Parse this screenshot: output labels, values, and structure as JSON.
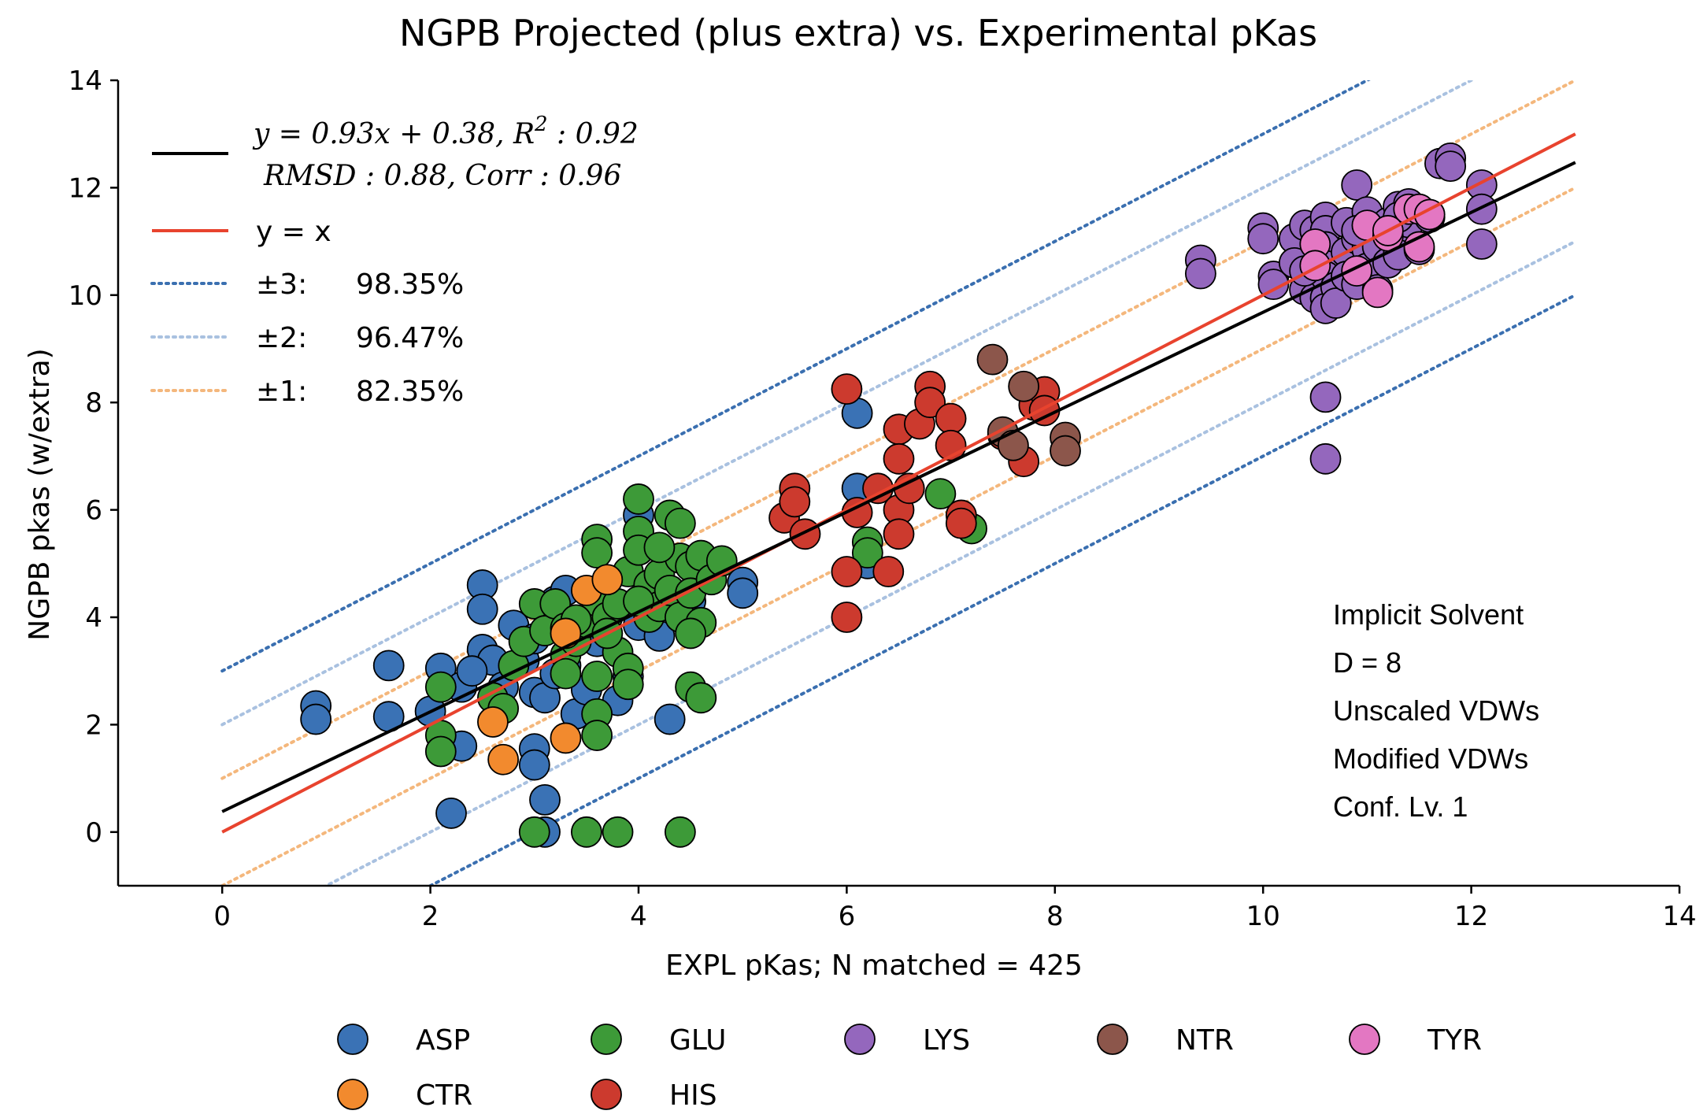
{
  "chart_data": {
    "type": "scatter",
    "title": "NGPB Projected (plus extra) vs. Experimental pKas",
    "xlabel": "EXPL pKas; N matched = 425",
    "ylabel": "NGPB pkas (w/extra)",
    "xlim": [
      -1,
      14
    ],
    "ylim": [
      -1,
      14
    ],
    "xticks": [
      "0",
      "2",
      "4",
      "6",
      "8",
      "10",
      "12",
      "14"
    ],
    "yticks": [
      "0",
      "2",
      "4",
      "6",
      "8",
      "10",
      "12",
      "14"
    ],
    "fit": {
      "slope": 0.93,
      "intercept": 0.38,
      "x_range": [
        0,
        13
      ],
      "color": "#000000"
    },
    "identity": {
      "label": "y = x",
      "x_range": [
        0,
        13
      ],
      "color": "#e8432e"
    },
    "bands": [
      {
        "offset": 3,
        "label": "±3:",
        "percent": "98.35%",
        "color": "#3a6fb0"
      },
      {
        "offset": 2,
        "label": "±2:",
        "percent": "96.47%",
        "color": "#a9c1e0"
      },
      {
        "offset": 1,
        "label": "±1:",
        "percent": "82.35%",
        "color": "#f4b77c"
      }
    ],
    "legend_top": {
      "fit_line1": "y = 0.93x + 0.38, R",
      "fit_line1_sup": "2",
      "fit_line1_tail": " : 0.92",
      "fit_line2": "RMSD : 0.88, Corr : 0.96"
    },
    "annotation": [
      "Implicit Solvent",
      "D = 8",
      "Unscaled VDWs",
      "Modified VDWs",
      "Conf. Lv. 1"
    ],
    "categories": [
      {
        "name": "ASP",
        "color": "#3a72b5"
      },
      {
        "name": "GLU",
        "color": "#3d9a38"
      },
      {
        "name": "LYS",
        "color": "#9467bd"
      },
      {
        "name": "NTR",
        "color": "#8c564b"
      },
      {
        "name": "TYR",
        "color": "#e377c2"
      },
      {
        "name": "CTR",
        "color": "#f28a2e"
      },
      {
        "name": "HIS",
        "color": "#cc3a2e"
      }
    ],
    "series": [
      {
        "name": "ASP",
        "points": [
          [
            0.9,
            2.35
          ],
          [
            0.9,
            2.1
          ],
          [
            1.6,
            3.1
          ],
          [
            1.6,
            2.15
          ],
          [
            2.0,
            2.25
          ],
          [
            2.1,
            3.05
          ],
          [
            2.2,
            0.35
          ],
          [
            2.3,
            2.7
          ],
          [
            2.3,
            1.6
          ],
          [
            2.5,
            4.6
          ],
          [
            2.5,
            4.15
          ],
          [
            2.5,
            3.4
          ],
          [
            2.6,
            3.2
          ],
          [
            2.7,
            2.7
          ],
          [
            2.8,
            3.85
          ],
          [
            2.9,
            3.2
          ],
          [
            3.0,
            2.6
          ],
          [
            3.0,
            1.55
          ],
          [
            3.0,
            1.25
          ],
          [
            3.0,
            3.6
          ],
          [
            3.1,
            2.5
          ],
          [
            3.1,
            0.6
          ],
          [
            3.1,
            0.0
          ],
          [
            3.2,
            4.3
          ],
          [
            3.3,
            4.5
          ],
          [
            3.3,
            3.1
          ],
          [
            3.4,
            2.2
          ],
          [
            3.5,
            2.65
          ],
          [
            3.6,
            3.55
          ],
          [
            3.8,
            2.45
          ],
          [
            3.9,
            2.9
          ],
          [
            4.0,
            5.9
          ],
          [
            4.0,
            3.85
          ],
          [
            4.2,
            3.65
          ],
          [
            4.3,
            2.1
          ],
          [
            4.5,
            4.3
          ],
          [
            4.7,
            4.9
          ],
          [
            5.0,
            4.65
          ],
          [
            5.0,
            4.45
          ],
          [
            6.1,
            7.8
          ],
          [
            6.1,
            6.4
          ],
          [
            6.2,
            5.0
          ],
          [
            2.4,
            3.0
          ],
          [
            3.2,
            2.95
          ],
          [
            3.7,
            4.1
          ]
        ]
      },
      {
        "name": "GLU",
        "points": [
          [
            2.1,
            2.7
          ],
          [
            2.1,
            1.8
          ],
          [
            2.1,
            1.5
          ],
          [
            2.6,
            2.5
          ],
          [
            2.7,
            2.3
          ],
          [
            2.8,
            3.1
          ],
          [
            2.9,
            3.55
          ],
          [
            3.0,
            4.25
          ],
          [
            3.0,
            0.0
          ],
          [
            3.1,
            3.75
          ],
          [
            3.2,
            4.25
          ],
          [
            3.3,
            3.8
          ],
          [
            3.3,
            3.3
          ],
          [
            3.3,
            2.95
          ],
          [
            3.4,
            3.55
          ],
          [
            3.5,
            3.9
          ],
          [
            3.5,
            0.0
          ],
          [
            3.6,
            5.45
          ],
          [
            3.6,
            5.2
          ],
          [
            3.6,
            4.3
          ],
          [
            3.6,
            2.2
          ],
          [
            3.6,
            1.8
          ],
          [
            3.6,
            2.9
          ],
          [
            3.7,
            4.0
          ],
          [
            3.8,
            4.25
          ],
          [
            3.8,
            3.35
          ],
          [
            3.8,
            0.0
          ],
          [
            3.9,
            4.85
          ],
          [
            3.9,
            3.05
          ],
          [
            3.9,
            2.75
          ],
          [
            4.0,
            6.2
          ],
          [
            4.0,
            5.6
          ],
          [
            4.0,
            5.25
          ],
          [
            4.1,
            4.6
          ],
          [
            4.1,
            4.0
          ],
          [
            4.2,
            4.8
          ],
          [
            4.2,
            4.2
          ],
          [
            4.3,
            5.9
          ],
          [
            4.3,
            4.5
          ],
          [
            4.4,
            5.75
          ],
          [
            4.4,
            5.1
          ],
          [
            4.4,
            4.0
          ],
          [
            4.4,
            0.0
          ],
          [
            4.5,
            4.95
          ],
          [
            4.5,
            4.45
          ],
          [
            4.5,
            2.7
          ],
          [
            4.6,
            5.15
          ],
          [
            4.6,
            3.9
          ],
          [
            4.6,
            2.5
          ],
          [
            4.7,
            4.7
          ],
          [
            4.8,
            5.05
          ],
          [
            4.2,
            5.3
          ],
          [
            3.7,
            3.7
          ],
          [
            4.5,
            3.7
          ],
          [
            6.2,
            5.4
          ],
          [
            6.2,
            5.2
          ],
          [
            6.9,
            6.3
          ],
          [
            7.2,
            5.65
          ],
          [
            3.4,
            3.95
          ],
          [
            4.0,
            4.3
          ]
        ]
      },
      {
        "name": "CTR",
        "points": [
          [
            2.6,
            2.05
          ],
          [
            2.7,
            1.35
          ],
          [
            3.3,
            3.7
          ],
          [
            3.3,
            1.75
          ],
          [
            3.5,
            4.5
          ],
          [
            3.7,
            4.7
          ]
        ]
      },
      {
        "name": "HIS",
        "points": [
          [
            5.4,
            5.85
          ],
          [
            5.5,
            6.4
          ],
          [
            5.5,
            6.15
          ],
          [
            5.6,
            5.55
          ],
          [
            6.0,
            8.25
          ],
          [
            6.0,
            4.85
          ],
          [
            6.0,
            4.0
          ],
          [
            6.1,
            5.95
          ],
          [
            6.3,
            6.4
          ],
          [
            6.4,
            4.85
          ],
          [
            6.5,
            7.5
          ],
          [
            6.5,
            6.95
          ],
          [
            6.5,
            6.0
          ],
          [
            6.5,
            5.55
          ],
          [
            6.6,
            6.4
          ],
          [
            6.7,
            7.6
          ],
          [
            6.8,
            8.3
          ],
          [
            6.8,
            8.0
          ],
          [
            7.0,
            7.7
          ],
          [
            7.0,
            7.2
          ],
          [
            7.1,
            5.9
          ],
          [
            7.1,
            5.75
          ],
          [
            7.5,
            7.4
          ],
          [
            7.8,
            7.95
          ],
          [
            7.9,
            8.2
          ],
          [
            7.9,
            7.85
          ],
          [
            7.7,
            6.9
          ]
        ]
      },
      {
        "name": "NTR",
        "points": [
          [
            7.4,
            8.8
          ],
          [
            7.5,
            7.45
          ],
          [
            7.6,
            7.2
          ],
          [
            7.7,
            8.3
          ],
          [
            8.1,
            7.35
          ],
          [
            8.1,
            7.1
          ]
        ]
      },
      {
        "name": "LYS",
        "points": [
          [
            9.4,
            10.65
          ],
          [
            9.4,
            10.4
          ],
          [
            10.0,
            11.25
          ],
          [
            10.0,
            11.05
          ],
          [
            10.1,
            10.35
          ],
          [
            10.1,
            10.2
          ],
          [
            10.3,
            11.05
          ],
          [
            10.3,
            10.6
          ],
          [
            10.4,
            11.3
          ],
          [
            10.4,
            10.1
          ],
          [
            10.5,
            11.2
          ],
          [
            10.5,
            9.95
          ],
          [
            10.6,
            11.45
          ],
          [
            10.6,
            11.2
          ],
          [
            10.6,
            10.9
          ],
          [
            10.6,
            10.55
          ],
          [
            10.6,
            10.35
          ],
          [
            10.6,
            9.95
          ],
          [
            10.6,
            9.75
          ],
          [
            10.6,
            8.1
          ],
          [
            10.6,
            6.95
          ],
          [
            10.7,
            10.15
          ],
          [
            10.7,
            9.85
          ],
          [
            10.8,
            11.35
          ],
          [
            10.8,
            10.8
          ],
          [
            10.8,
            10.35
          ],
          [
            10.9,
            12.05
          ],
          [
            10.9,
            11.05
          ],
          [
            10.9,
            10.2
          ],
          [
            11.0,
            11.55
          ],
          [
            11.0,
            10.85
          ],
          [
            11.0,
            10.5
          ],
          [
            11.1,
            10.9
          ],
          [
            11.1,
            10.1
          ],
          [
            11.2,
            11.35
          ],
          [
            11.2,
            10.6
          ],
          [
            11.3,
            11.65
          ],
          [
            11.3,
            11.05
          ],
          [
            11.3,
            10.75
          ],
          [
            11.4,
            11.7
          ],
          [
            11.4,
            11.35
          ],
          [
            11.5,
            10.85
          ],
          [
            11.6,
            11.45
          ],
          [
            11.7,
            12.45
          ],
          [
            11.8,
            12.55
          ],
          [
            11.8,
            12.4
          ],
          [
            12.1,
            12.05
          ],
          [
            12.1,
            11.6
          ],
          [
            12.1,
            10.95
          ],
          [
            10.4,
            10.45
          ],
          [
            10.9,
            11.2
          ],
          [
            11.3,
            11.45
          ]
        ]
      },
      {
        "name": "TYR",
        "points": [
          [
            10.5,
            10.95
          ],
          [
            10.5,
            10.55
          ],
          [
            10.9,
            10.45
          ],
          [
            11.0,
            11.3
          ],
          [
            11.1,
            10.05
          ],
          [
            11.2,
            11.1
          ],
          [
            11.4,
            11.6
          ],
          [
            11.5,
            11.6
          ],
          [
            11.6,
            11.5
          ],
          [
            11.5,
            10.9
          ],
          [
            11.2,
            11.2
          ]
        ]
      }
    ]
  }
}
